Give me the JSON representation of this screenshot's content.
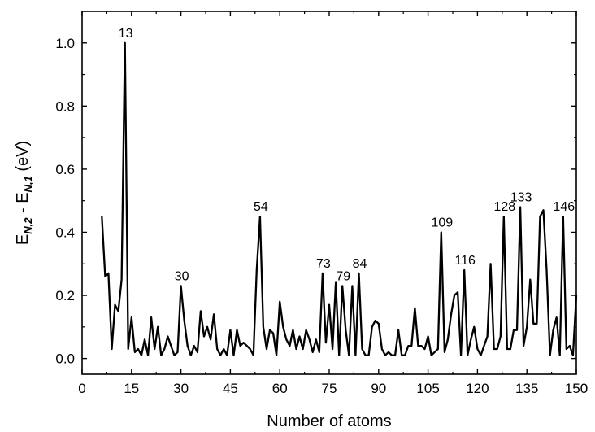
{
  "chart_data": {
    "type": "line",
    "title": "",
    "xlabel": "Number of atoms",
    "ylabel": {
      "main": "E",
      "sub1": "N,2",
      "minus": " - E",
      "sub2": "N,1",
      "unit": " (eV)"
    },
    "xlim": [
      0,
      150
    ],
    "ylim": [
      -0.05,
      1.1
    ],
    "x_ticks": [
      0,
      15,
      30,
      45,
      60,
      75,
      90,
      105,
      120,
      135,
      150
    ],
    "y_ticks": [
      0.0,
      0.2,
      0.4,
      0.6,
      0.8,
      1.0
    ],
    "y_tick_labels": [
      "0.0",
      "0.2",
      "0.4",
      "0.6",
      "0.8",
      "1.0"
    ],
    "grid": false,
    "series": [
      {
        "x": [
          6,
          7,
          8,
          9,
          10,
          11,
          12,
          13,
          14,
          15,
          16,
          17,
          18,
          19,
          20,
          21,
          22,
          23,
          24,
          25,
          26,
          27,
          28,
          29,
          30,
          31,
          32,
          33,
          34,
          35,
          36,
          37,
          38,
          39,
          40,
          41,
          42,
          43,
          44,
          45,
          46,
          47,
          48,
          49,
          50,
          51,
          52,
          53,
          54,
          55,
          56,
          57,
          58,
          59,
          60,
          61,
          62,
          63,
          64,
          65,
          66,
          67,
          68,
          69,
          70,
          71,
          72,
          73,
          74,
          75,
          76,
          77,
          78,
          79,
          80,
          81,
          82,
          83,
          84,
          85,
          86,
          87,
          88,
          89,
          90,
          91,
          92,
          93,
          94,
          95,
          96,
          97,
          98,
          99,
          100,
          101,
          102,
          103,
          104,
          105,
          106,
          107,
          108,
          109,
          110,
          111,
          112,
          113,
          114,
          115,
          116,
          117,
          118,
          119,
          120,
          121,
          122,
          123,
          124,
          125,
          126,
          127,
          128,
          129,
          130,
          131,
          132,
          133,
          134,
          135,
          136,
          137,
          138,
          139,
          140,
          141,
          142,
          143,
          144,
          145,
          146,
          147,
          148,
          149,
          150
        ],
        "values": [
          0.45,
          0.26,
          0.27,
          0.03,
          0.17,
          0.15,
          0.25,
          1.0,
          0.03,
          0.13,
          0.02,
          0.03,
          0.01,
          0.06,
          0.01,
          0.13,
          0.03,
          0.1,
          0.01,
          0.03,
          0.07,
          0.04,
          0.01,
          0.02,
          0.23,
          0.12,
          0.04,
          0.01,
          0.04,
          0.02,
          0.15,
          0.07,
          0.1,
          0.06,
          0.14,
          0.03,
          0.01,
          0.03,
          0.01,
          0.09,
          0.01,
          0.09,
          0.04,
          0.05,
          0.04,
          0.03,
          0.01,
          0.28,
          0.45,
          0.1,
          0.03,
          0.09,
          0.08,
          0.01,
          0.18,
          0.1,
          0.06,
          0.04,
          0.09,
          0.03,
          0.07,
          0.03,
          0.09,
          0.06,
          0.02,
          0.06,
          0.02,
          0.27,
          0.05,
          0.17,
          0.03,
          0.24,
          0.01,
          0.23,
          0.09,
          0.01,
          0.23,
          0.01,
          0.27,
          0.03,
          0.01,
          0.01,
          0.1,
          0.12,
          0.11,
          0.03,
          0.01,
          0.02,
          0.01,
          0.01,
          0.09,
          0.01,
          0.01,
          0.04,
          0.04,
          0.16,
          0.04,
          0.04,
          0.03,
          0.07,
          0.01,
          0.02,
          0.03,
          0.4,
          0.02,
          0.06,
          0.14,
          0.2,
          0.21,
          0.01,
          0.28,
          0.01,
          0.06,
          0.1,
          0.03,
          0.01,
          0.04,
          0.07,
          0.3,
          0.03,
          0.03,
          0.07,
          0.45,
          0.03,
          0.03,
          0.09,
          0.09,
          0.48,
          0.04,
          0.1,
          0.25,
          0.11,
          0.11,
          0.45,
          0.47,
          0.28,
          0.01,
          0.09,
          0.13,
          0.01,
          0.45,
          0.03,
          0.04,
          0.01,
          0.2
        ],
        "color": "#000000"
      }
    ],
    "annotations": [
      {
        "text": "13",
        "x": 13,
        "y": 1.0
      },
      {
        "text": "30",
        "x": 30,
        "y": 0.23
      },
      {
        "text": "54",
        "x": 54,
        "y": 0.45
      },
      {
        "text": "73",
        "x": 73,
        "y": 0.27
      },
      {
        "text": "79",
        "x": 79,
        "y": 0.23
      },
      {
        "text": "84",
        "x": 84,
        "y": 0.27
      },
      {
        "text": "109",
        "x": 109,
        "y": 0.4
      },
      {
        "text": "116",
        "x": 116,
        "y": 0.28
      },
      {
        "text": "128",
        "x": 128,
        "y": 0.45
      },
      {
        "text": "133",
        "x": 133,
        "y": 0.48
      },
      {
        "text": "146",
        "x": 146,
        "y": 0.45
      }
    ]
  }
}
